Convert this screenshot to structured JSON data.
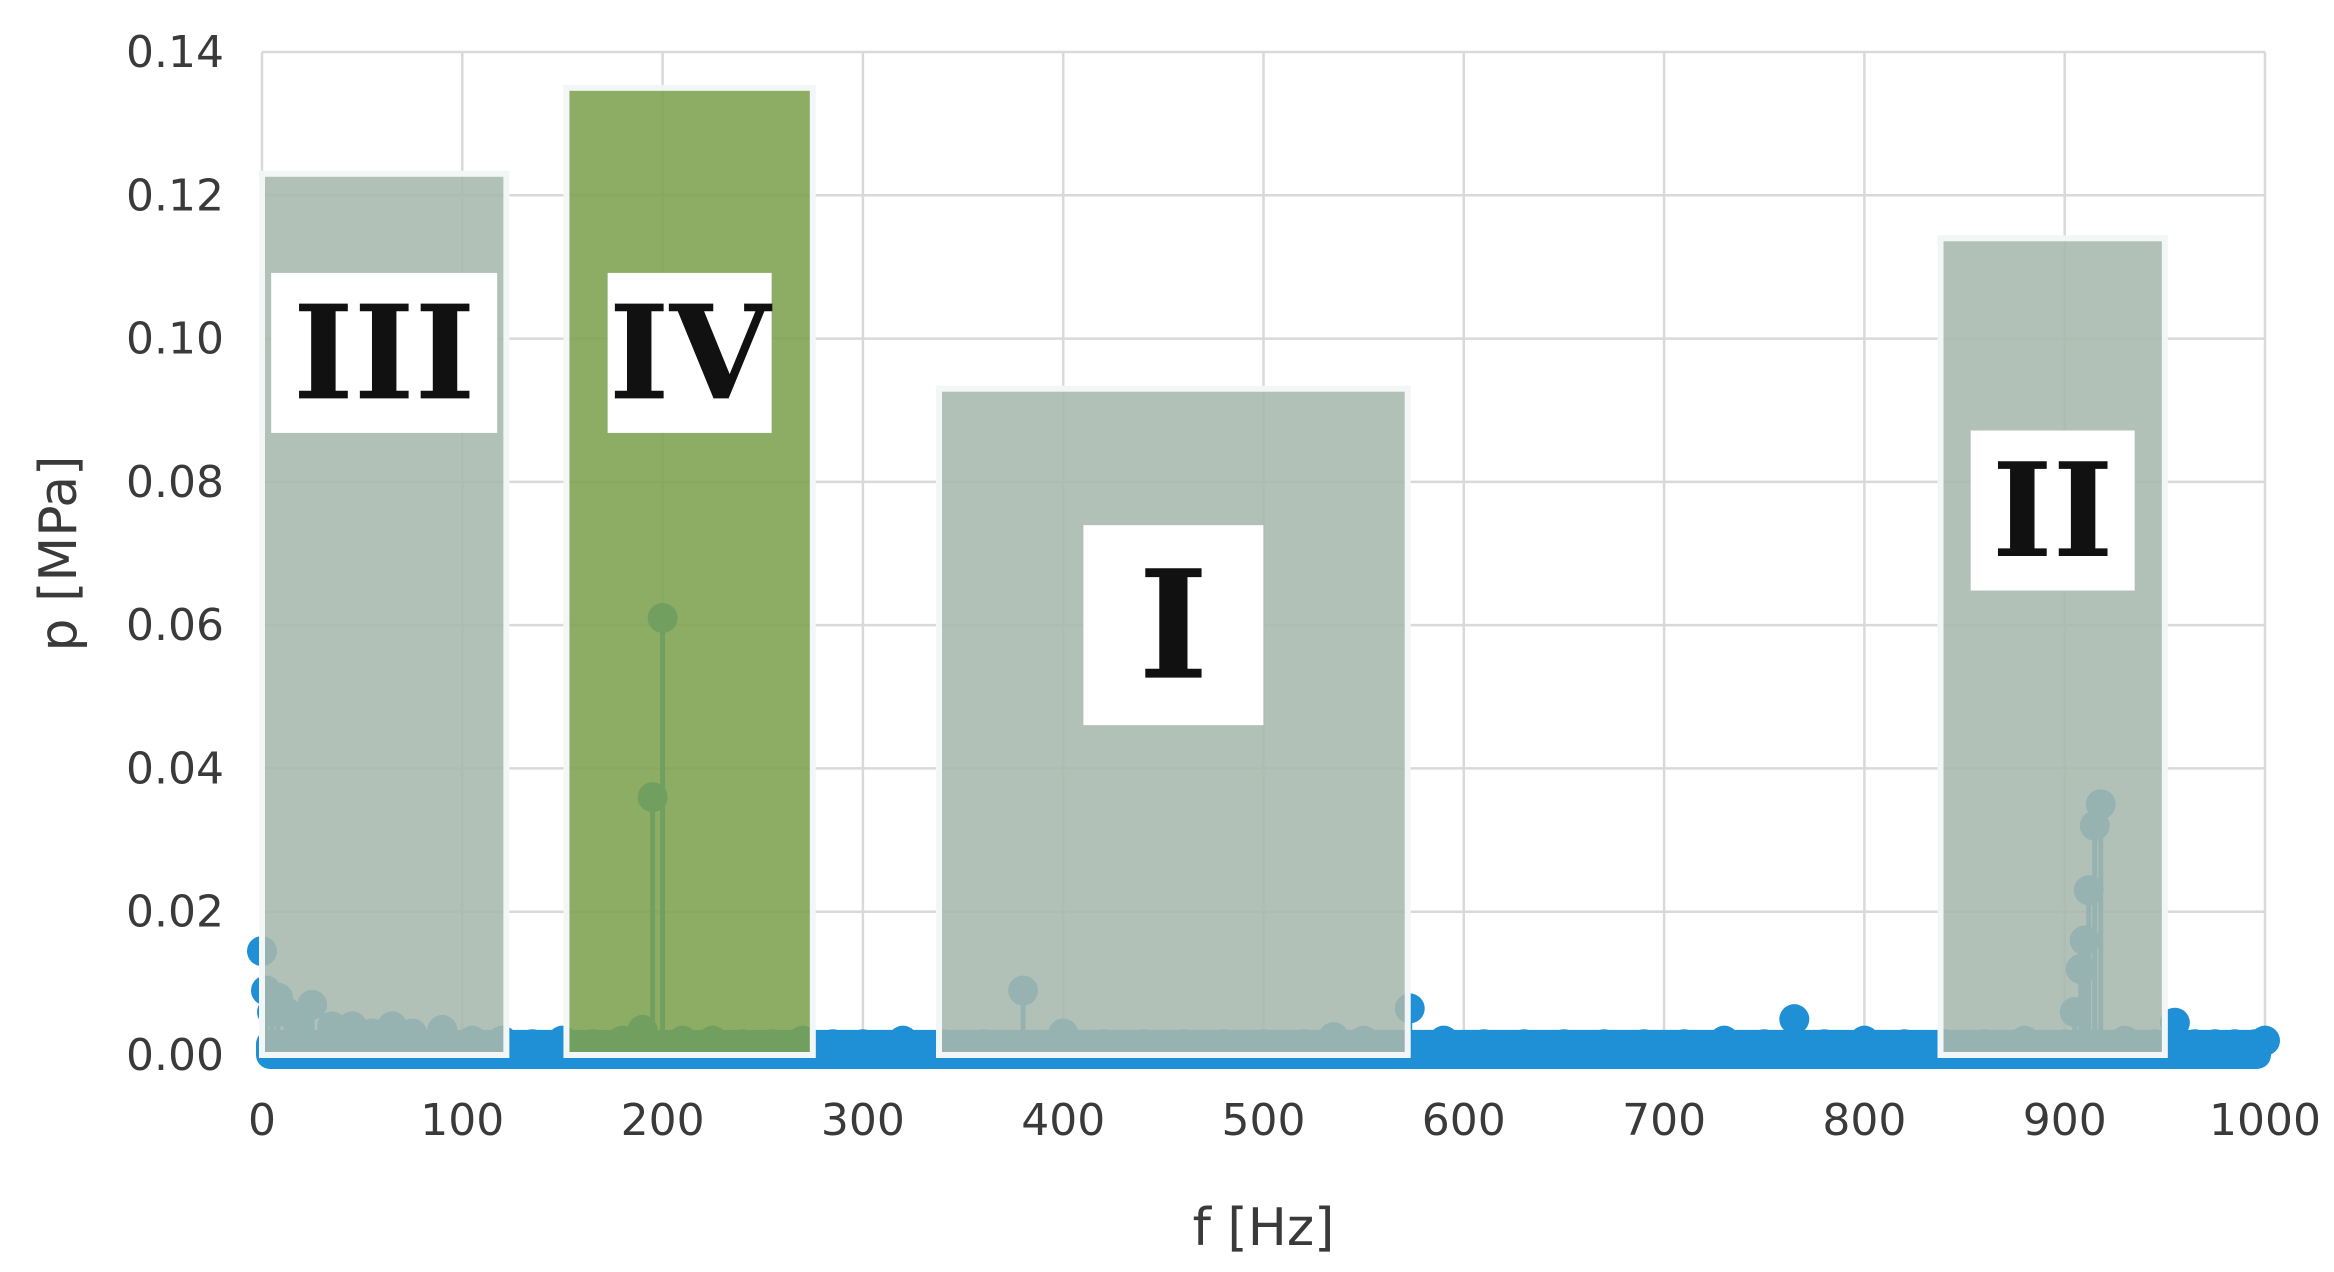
{
  "chart_data": {
    "type": "scatter",
    "title": "",
    "xlabel": "f [Hz]",
    "ylabel": "p [MPa]",
    "xlim": [
      0,
      1000
    ],
    "ylim": [
      0,
      0.14
    ],
    "x_ticks": [
      "0",
      "100",
      "200",
      "300",
      "400",
      "500",
      "600",
      "700",
      "800",
      "900",
      "1000"
    ],
    "y_ticks": [
      "0.00",
      "0.02",
      "0.04",
      "0.06",
      "0.08",
      "0.10",
      "0.12",
      "0.14"
    ],
    "grid": true,
    "legend": "none",
    "series_color": "#1f8fd6",
    "series": [
      {
        "x": [
          0,
          2,
          5,
          8,
          12,
          18,
          25,
          35,
          45,
          55,
          65,
          75,
          90,
          105,
          120,
          135,
          150,
          165,
          180,
          190,
          195,
          200,
          210,
          225,
          240,
          255,
          270,
          285,
          300,
          320,
          340,
          360,
          380,
          400,
          420,
          440,
          460,
          480,
          500,
          520,
          535,
          550,
          573,
          590,
          610,
          630,
          650,
          670,
          690,
          710,
          730,
          750,
          765,
          780,
          800,
          820,
          840,
          860,
          880,
          900,
          905,
          908,
          910,
          912,
          915,
          918,
          930,
          945,
          955,
          965,
          975,
          985,
          995,
          1000
        ],
        "y": [
          0.0145,
          0.009,
          0.006,
          0.008,
          0.006,
          0.005,
          0.007,
          0.004,
          0.004,
          0.003,
          0.004,
          0.003,
          0.0035,
          0.002,
          0.002,
          0.0015,
          0.002,
          0.0015,
          0.002,
          0.0035,
          0.036,
          0.061,
          0.002,
          0.002,
          0.0015,
          0.0015,
          0.002,
          0.0015,
          0.0015,
          0.002,
          0.0015,
          0.0015,
          0.009,
          0.003,
          0.0015,
          0.0015,
          0.0015,
          0.0015,
          0.0015,
          0.0015,
          0.0025,
          0.002,
          0.0065,
          0.002,
          0.0015,
          0.0015,
          0.0015,
          0.0015,
          0.0015,
          0.0015,
          0.002,
          0.0015,
          0.005,
          0.0015,
          0.002,
          0.0015,
          0.0015,
          0.0015,
          0.002,
          0.0015,
          0.006,
          0.012,
          0.016,
          0.023,
          0.032,
          0.035,
          0.002,
          0.0015,
          0.0045,
          0.0015,
          0.0015,
          0.0015,
          0.0015,
          0.002
        ]
      }
    ],
    "regions": [
      {
        "label": "III",
        "x_start": 0,
        "x_end": 122,
        "y_top": 0.123,
        "fill": "#a7b8ad",
        "label_y": 0.098
      },
      {
        "label": "IV",
        "x_start": 152,
        "x_end": 275,
        "y_top": 0.135,
        "fill": "#7da24f",
        "label_y": 0.098
      },
      {
        "label": "I",
        "x_start": 338,
        "x_end": 572,
        "y_top": 0.093,
        "fill": "#a7b8ad",
        "label_y": 0.06
      },
      {
        "label": "II",
        "x_start": 838,
        "x_end": 950,
        "y_top": 0.114,
        "fill": "#a7b8ad",
        "label_y": 0.076
      }
    ]
  }
}
